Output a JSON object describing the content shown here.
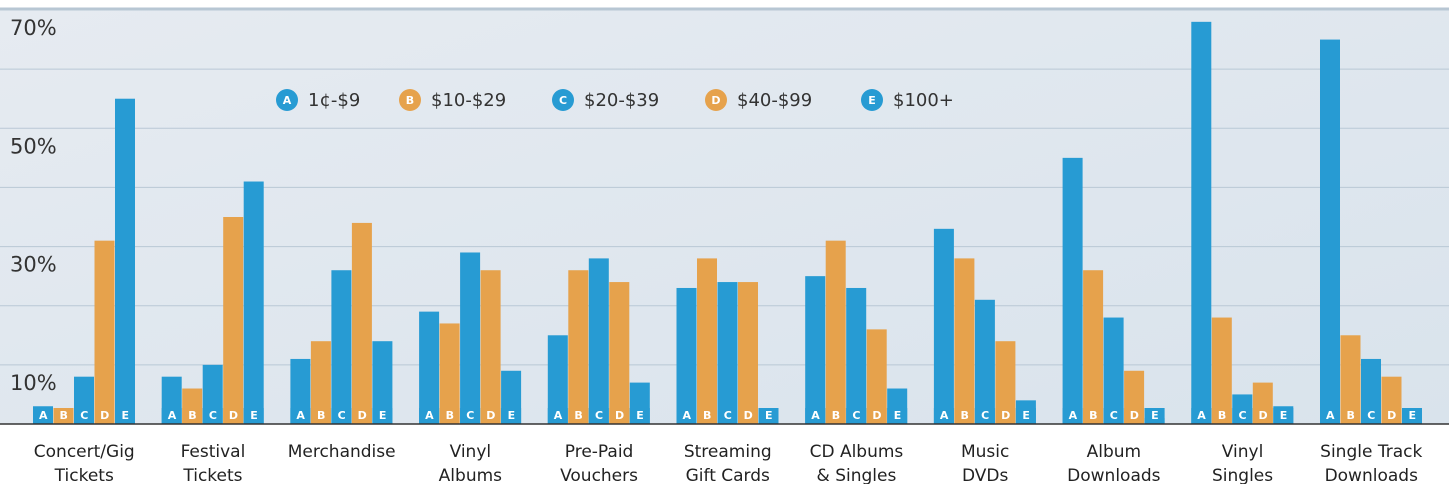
{
  "chart_data": {
    "type": "bar",
    "categories": [
      [
        "Concert/Gig",
        "Tickets"
      ],
      [
        "Festival",
        "Tickets"
      ],
      [
        "Merchandise"
      ],
      [
        "Vinyl",
        "Albums"
      ],
      [
        "Pre-Paid",
        "Vouchers"
      ],
      [
        "Streaming",
        "Gift Cards"
      ],
      [
        "CD Albums",
        "& Singles"
      ],
      [
        "Music",
        "DVDs"
      ],
      [
        "Album",
        "Downloads"
      ],
      [
        "Vinyl",
        "Singles"
      ],
      [
        "Single Track",
        "Downloads"
      ]
    ],
    "series": [
      {
        "key": "A",
        "name": "1¢-$9",
        "color": "#279bd3",
        "values": [
          3,
          8,
          11,
          19,
          15,
          23,
          25,
          33,
          45,
          68,
          65
        ]
      },
      {
        "key": "B",
        "name": "$10-$29",
        "color": "#e6a24c",
        "values": [
          0,
          6,
          14,
          17,
          26,
          28,
          31,
          28,
          26,
          18,
          15
        ]
      },
      {
        "key": "C",
        "name": "$20-$39",
        "color": "#279bd3",
        "values": [
          8,
          10,
          26,
          29,
          28,
          24,
          23,
          21,
          18,
          5,
          11
        ]
      },
      {
        "key": "D",
        "name": "$40-$99",
        "color": "#e6a24c",
        "values": [
          31,
          35,
          34,
          26,
          24,
          24,
          16,
          14,
          9,
          7,
          8
        ]
      },
      {
        "key": "E",
        "name": "$100+",
        "color": "#279bd3",
        "values": [
          55,
          41,
          14,
          9,
          7,
          1,
          6,
          4,
          1,
          3,
          1
        ]
      }
    ],
    "ylim": [
      0,
      70
    ],
    "yticks": [
      {
        "value": 10,
        "label": "10%"
      },
      {
        "value": 20,
        "label": null
      },
      {
        "value": 30,
        "label": "30%"
      },
      {
        "value": 40,
        "label": null
      },
      {
        "value": 50,
        "label": "50%"
      },
      {
        "value": 60,
        "label": null
      },
      {
        "value": 70,
        "label": "70%"
      }
    ],
    "grid": true
  }
}
